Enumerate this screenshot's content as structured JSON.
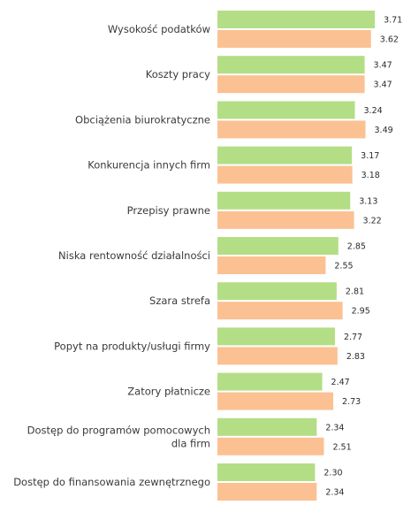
{
  "chart_data": {
    "type": "bar",
    "orientation": "horizontal",
    "categories": [
      [
        "Wysokość podatków"
      ],
      [
        "Koszty pracy"
      ],
      [
        "Obciążenia biurokratyczne"
      ],
      [
        "Konkurencja innych firm"
      ],
      [
        "Przepisy prawne"
      ],
      [
        "Niska rentowność działalności"
      ],
      [
        "Szara strefa"
      ],
      [
        "Popyt na produkty/usługi firmy"
      ],
      [
        "Zatory płatnicze"
      ],
      [
        "Dostęp do programów pomocowych",
        "dla firm"
      ],
      [
        "Dostęp do finansowania zewnętrznego"
      ]
    ],
    "series": [
      {
        "color": "#b3de86",
        "values": [
          3.71,
          3.47,
          3.24,
          3.17,
          3.13,
          2.85,
          2.81,
          2.77,
          2.47,
          2.34,
          2.3
        ]
      },
      {
        "color": "#fbc193",
        "values": [
          3.62,
          3.47,
          3.49,
          3.18,
          3.22,
          2.55,
          2.95,
          2.83,
          2.73,
          2.51,
          2.34
        ]
      }
    ],
    "value_labels": [
      [
        "3.71",
        "3.47",
        "3.24",
        "3.17",
        "3.13",
        "2.85",
        "2.81",
        "2.77",
        "2.47",
        "2.34",
        "2.30"
      ],
      [
        "3.62",
        "3.47",
        "3.49",
        "3.18",
        "3.22",
        "2.55",
        "2.95",
        "2.83",
        "2.73",
        "2.51",
        "2.34"
      ]
    ],
    "xlim": [
      0,
      4
    ],
    "grid": false,
    "legend": "none",
    "title": "",
    "xlabel": "",
    "ylabel": ""
  }
}
